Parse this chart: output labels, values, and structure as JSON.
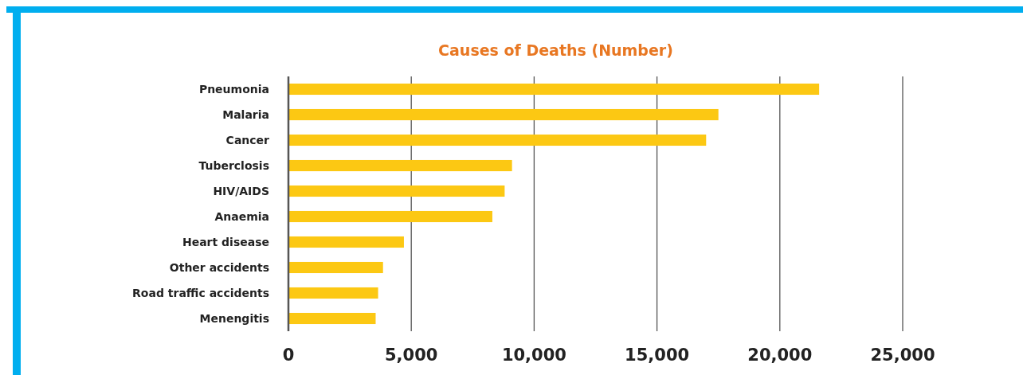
{
  "chart_data": {
    "type": "bar",
    "orientation": "horizontal",
    "title": "Causes of Deaths (Number)",
    "categories": [
      "Pneumonia",
      "Malaria",
      "Cancer",
      "Tuberclosis",
      "HIV/AIDS",
      "Anaemia",
      "Heart disease",
      "Other accidents",
      "Road traffic accidents",
      "Menengitis"
    ],
    "values": [
      21600,
      17500,
      17000,
      9100,
      8800,
      8300,
      4700,
      3850,
      3650,
      3550
    ],
    "color": "#fcc813",
    "xlim": [
      0,
      25000
    ],
    "xticks": [
      {
        "value": 0,
        "label": "0"
      },
      {
        "value": 5000,
        "label": "5,000"
      },
      {
        "value": 10000,
        "label": "10,000"
      },
      {
        "value": 15000,
        "label": "15,000"
      },
      {
        "value": 20000,
        "label": "20,000"
      },
      {
        "value": 25000,
        "label": "25,000"
      }
    ],
    "grid": "x"
  }
}
